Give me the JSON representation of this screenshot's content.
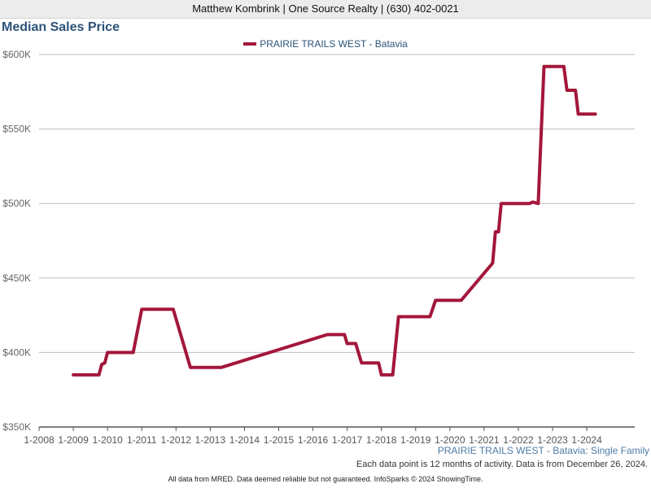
{
  "header": {
    "text": "Matthew Kombrink | One Source Realty | (630) 402-0021"
  },
  "page_title": "Median Sales Price",
  "colors": {
    "line": "#a3173a",
    "title": "#2c5378",
    "grid": "#bdbdbd"
  },
  "chart_data": {
    "type": "line",
    "title": "Median Sales Price",
    "xlabel": "",
    "ylabel": "",
    "legend_position": "top-center",
    "grid": true,
    "x_ticks": [
      "1-2008",
      "1-2009",
      "1-2010",
      "1-2011",
      "1-2012",
      "1-2013",
      "1-2014",
      "1-2015",
      "1-2016",
      "1-2017",
      "1-2018",
      "1-2019",
      "1-2020",
      "1-2021",
      "1-2022",
      "1-2023",
      "1-2024"
    ],
    "y_ticks": [
      "$350K",
      "$400K",
      "$450K",
      "$500K",
      "$550K",
      "$600K"
    ],
    "xlim": [
      2008.0,
      2025.4
    ],
    "ylim": [
      350000,
      600000
    ],
    "series": [
      {
        "name": "PRAIRIE TRAILS WEST - Batavia",
        "x": [
          2009.0,
          2009.75,
          2009.83,
          2009.92,
          2010.0,
          2010.75,
          2011.0,
          2011.92,
          2012.42,
          2013.33,
          2016.42,
          2016.92,
          2017.0,
          2017.25,
          2017.42,
          2017.92,
          2018.0,
          2018.33,
          2018.5,
          2019.42,
          2019.58,
          2020.33,
          2021.25,
          2021.33,
          2021.42,
          2021.5,
          2021.58,
          2022.33,
          2022.42,
          2022.58,
          2022.75,
          2023.33,
          2023.42,
          2023.67,
          2023.75,
          2024.25
        ],
        "y": [
          385000,
          385000,
          392000,
          393000,
          400000,
          400000,
          429000,
          429000,
          390000,
          390000,
          412000,
          412000,
          406000,
          406000,
          393000,
          393000,
          385000,
          385000,
          424000,
          424000,
          435000,
          435000,
          460000,
          481000,
          481000,
          500000,
          500000,
          500000,
          501000,
          500000,
          592000,
          592000,
          576000,
          576000,
          560000,
          560000
        ]
      }
    ],
    "subtitle": "PRAIRIE TRAILS WEST - Batavia: Single Family",
    "note": "Each data point is 12 months of activity. Data is from December 26, 2024."
  },
  "footer": {
    "text": "All data from MRED. Data deemed reliable but not guaranteed. InfoSparks © 2024 ShowingTime."
  }
}
